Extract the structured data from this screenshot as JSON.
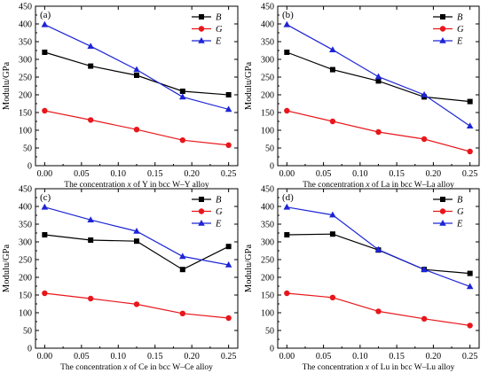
{
  "chart_data": [
    {
      "type": "line",
      "panel_label": "(a)",
      "ylabel": "Modulu/GPa",
      "xlabel_parts": [
        "The concentration ",
        "x",
        " of Y in bcc W–Y alloy"
      ],
      "x": [
        0.0,
        0.0625,
        0.125,
        0.1875,
        0.25
      ],
      "xlim": [
        -0.0125,
        0.2625
      ],
      "ylim": [
        0,
        450
      ],
      "xticks": [
        "0.00",
        "0.05",
        "0.10",
        "0.15",
        "0.20",
        "0.25"
      ],
      "yticks": [
        "0",
        "50",
        "100",
        "150",
        "200",
        "250",
        "300",
        "350",
        "400",
        "450"
      ],
      "legend_position": "top-right",
      "series": [
        {
          "name": "B",
          "color": "#000000",
          "marker": "square",
          "values": [
            320,
            281,
            255,
            210,
            200
          ]
        },
        {
          "name": "G",
          "color": "#e8161b",
          "marker": "circle",
          "values": [
            155,
            129,
            102,
            72,
            58
          ]
        },
        {
          "name": "E",
          "color": "#1d24d6",
          "marker": "triangle",
          "values": [
            398,
            337,
            271,
            194,
            159
          ]
        }
      ]
    },
    {
      "type": "line",
      "panel_label": "(b)",
      "ylabel": "Modulu/GPa",
      "xlabel_parts": [
        "The concentration ",
        "x",
        " of La in bcc W–La alloy"
      ],
      "x": [
        0.0,
        0.0625,
        0.125,
        0.1875,
        0.25
      ],
      "xlim": [
        -0.0125,
        0.2625
      ],
      "ylim": [
        0,
        450
      ],
      "xticks": [
        "0.00",
        "0.05",
        "0.10",
        "0.15",
        "0.20",
        "0.25"
      ],
      "yticks": [
        "0",
        "50",
        "100",
        "150",
        "200",
        "250",
        "300",
        "350",
        "400",
        "450"
      ],
      "legend_position": "top-right",
      "series": [
        {
          "name": "B",
          "color": "#000000",
          "marker": "square",
          "values": [
            320,
            271,
            239,
            194,
            181
          ]
        },
        {
          "name": "G",
          "color": "#e8161b",
          "marker": "circle",
          "values": [
            155,
            125,
            95,
            75,
            40
          ]
        },
        {
          "name": "E",
          "color": "#1d24d6",
          "marker": "triangle",
          "values": [
            398,
            327,
            251,
            200,
            112
          ]
        }
      ]
    },
    {
      "type": "line",
      "panel_label": "(c)",
      "ylabel": "Modulu/GPa",
      "xlabel_parts": [
        "The concentration ",
        "x",
        " of  Ce in bcc W–Ce alloy"
      ],
      "x": [
        0.0,
        0.0625,
        0.125,
        0.1875,
        0.25
      ],
      "xlim": [
        -0.0125,
        0.2625
      ],
      "ylim": [
        0,
        450
      ],
      "xticks": [
        "0.00",
        "0.05",
        "0.10",
        "0.15",
        "0.20",
        "0.25"
      ],
      "yticks": [
        "0",
        "50",
        "100",
        "150",
        "200",
        "250",
        "300",
        "350",
        "400",
        "450"
      ],
      "legend_position": "top-right",
      "series": [
        {
          "name": "B",
          "color": "#000000",
          "marker": "square",
          "values": [
            320,
            305,
            302,
            222,
            287
          ]
        },
        {
          "name": "G",
          "color": "#e8161b",
          "marker": "circle",
          "values": [
            155,
            140,
            124,
            98,
            85
          ]
        },
        {
          "name": "E",
          "color": "#1d24d6",
          "marker": "triangle",
          "values": [
            398,
            362,
            330,
            259,
            235
          ]
        }
      ]
    },
    {
      "type": "line",
      "panel_label": "(d)",
      "ylabel": "Modulu/GPa",
      "xlabel_parts": [
        "The concentration ",
        "x",
        " of Lu in bcc W–Lu alloy"
      ],
      "x": [
        0.0,
        0.0625,
        0.125,
        0.1875,
        0.25
      ],
      "xlim": [
        -0.0125,
        0.2625
      ],
      "ylim": [
        0,
        450
      ],
      "xticks": [
        "0.00",
        "0.05",
        "0.10",
        "0.15",
        "0.20",
        "0.25"
      ],
      "yticks": [
        "0",
        "50",
        "100",
        "150",
        "200",
        "250",
        "300",
        "350",
        "400",
        "450"
      ],
      "legend_position": "top-right",
      "series": [
        {
          "name": "B",
          "color": "#000000",
          "marker": "square",
          "values": [
            320,
            322,
            277,
            222,
            211
          ]
        },
        {
          "name": "G",
          "color": "#e8161b",
          "marker": "circle",
          "values": [
            155,
            143,
            104,
            83,
            64
          ]
        },
        {
          "name": "E",
          "color": "#1d24d6",
          "marker": "triangle",
          "values": [
            398,
            376,
            278,
            222,
            174
          ]
        }
      ]
    }
  ]
}
